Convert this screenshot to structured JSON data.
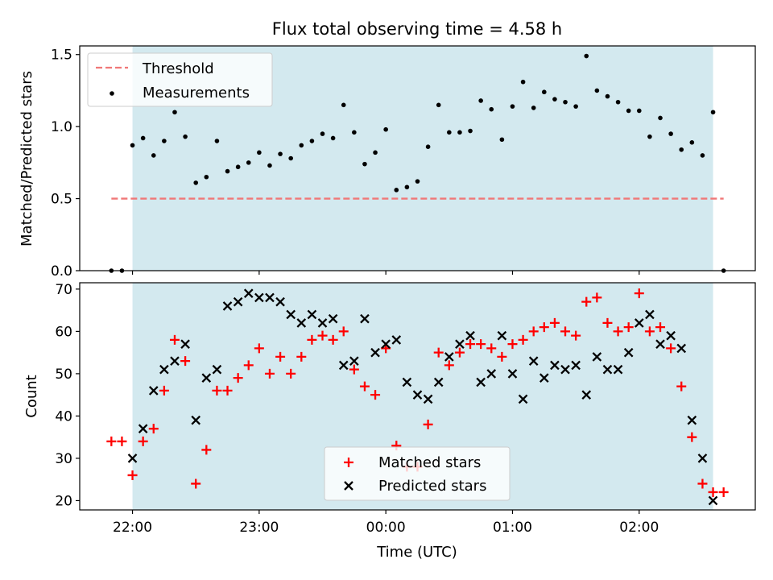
{
  "figure": {
    "title": "Flux total observing time = 4.58 h",
    "xlabel": "Time (UTC)",
    "xtick_labels": [
      "22:00",
      "23:00",
      "00:00",
      "01:00",
      "02:00"
    ],
    "colors": {
      "observing_band": "#d3e9ef",
      "threshold": "#f07878",
      "measurements": "#000000",
      "matched": "#ff0000",
      "predicted": "#000000"
    }
  },
  "chart_data": [
    {
      "type": "scatter",
      "ylabel": "Matched/Predicted stars",
      "ylim": [
        0,
        1.56
      ],
      "yticks": [
        0.0,
        0.5,
        1.0,
        1.5
      ],
      "ytick_labels": [
        "0.0",
        "0.5",
        "1.0",
        "1.5"
      ],
      "xlim_minutes": [
        -25,
        295
      ],
      "observing_window_minutes": [
        0,
        275
      ],
      "threshold": {
        "label": "Threshold",
        "value": 0.5,
        "x_range_minutes": [
          -10,
          280
        ]
      },
      "legend": {
        "position": "top-left",
        "entries": [
          "Threshold",
          "Measurements"
        ]
      },
      "series": [
        {
          "name": "Measurements",
          "marker": "dot",
          "x": [
            -10,
            -5,
            0,
            5,
            10,
            15,
            20,
            25,
            30,
            35,
            40,
            45,
            50,
            55,
            60,
            65,
            70,
            75,
            80,
            85,
            90,
            95,
            100,
            105,
            110,
            115,
            120,
            125,
            130,
            135,
            140,
            145,
            150,
            155,
            160,
            165,
            170,
            175,
            180,
            185,
            190,
            195,
            200,
            205,
            210,
            215,
            220,
            225,
            230,
            235,
            240,
            245,
            250,
            255,
            260,
            265,
            270,
            275,
            280
          ],
          "y": [
            0.0,
            0.0,
            0.87,
            0.92,
            0.8,
            0.9,
            1.1,
            0.93,
            0.61,
            0.65,
            0.9,
            0.69,
            0.72,
            0.75,
            0.82,
            0.73,
            0.81,
            0.78,
            0.87,
            0.9,
            0.95,
            0.92,
            1.15,
            0.96,
            0.74,
            0.82,
            0.98,
            0.56,
            0.58,
            0.62,
            0.86,
            1.15,
            0.96,
            0.96,
            0.97,
            1.18,
            1.12,
            0.91,
            1.14,
            1.31,
            1.13,
            1.24,
            1.19,
            1.17,
            1.14,
            1.49,
            1.25,
            1.21,
            1.17,
            1.11,
            1.11,
            0.93,
            1.06,
            0.95,
            0.84,
            0.89,
            0.8,
            1.1,
            0.0
          ]
        }
      ]
    },
    {
      "type": "scatter",
      "ylabel": "Count",
      "ylim": [
        17.8,
        71.5
      ],
      "yticks": [
        20,
        30,
        40,
        50,
        60,
        70
      ],
      "ytick_labels": [
        "20",
        "30",
        "40",
        "50",
        "60",
        "70"
      ],
      "xlim_minutes": [
        -25,
        295
      ],
      "observing_window_minutes": [
        0,
        275
      ],
      "legend": {
        "position": "lower center",
        "entries": [
          "Matched stars",
          "Predicted stars"
        ]
      },
      "series": [
        {
          "name": "Matched stars",
          "marker": "plus",
          "x": [
            -10,
            -5,
            0,
            5,
            10,
            15,
            20,
            25,
            30,
            35,
            40,
            45,
            50,
            55,
            60,
            65,
            70,
            75,
            80,
            85,
            90,
            95,
            100,
            105,
            110,
            115,
            120,
            125,
            130,
            135,
            140,
            145,
            150,
            155,
            160,
            165,
            170,
            175,
            180,
            185,
            190,
            195,
            200,
            205,
            210,
            215,
            220,
            225,
            230,
            235,
            240,
            245,
            250,
            255,
            260,
            265,
            270,
            275,
            280
          ],
          "y": [
            34,
            34,
            26,
            34,
            37,
            46,
            58,
            53,
            24,
            32,
            46,
            46,
            49,
            52,
            56,
            50,
            54,
            50,
            54,
            58,
            59,
            58,
            60,
            51,
            47,
            45,
            56,
            33,
            28,
            28,
            38,
            55,
            52,
            55,
            57,
            57,
            56,
            54,
            57,
            58,
            60,
            61,
            62,
            60,
            59,
            67,
            68,
            62,
            60,
            61,
            69,
            60,
            61,
            56,
            47,
            35,
            24,
            22,
            22
          ]
        },
        {
          "name": "Predicted stars",
          "marker": "x",
          "x": [
            0,
            5,
            10,
            15,
            20,
            25,
            30,
            35,
            40,
            45,
            50,
            55,
            60,
            65,
            70,
            75,
            80,
            85,
            90,
            95,
            100,
            105,
            110,
            115,
            120,
            125,
            130,
            135,
            140,
            145,
            150,
            155,
            160,
            165,
            170,
            175,
            180,
            185,
            190,
            195,
            200,
            205,
            210,
            215,
            220,
            225,
            230,
            235,
            240,
            245,
            250,
            255,
            260,
            265,
            270,
            275
          ],
          "y": [
            30,
            37,
            46,
            51,
            53,
            57,
            39,
            49,
            51,
            66,
            67,
            69,
            68,
            68,
            67,
            64,
            62,
            64,
            62,
            63,
            52,
            53,
            63,
            55,
            57,
            58,
            48,
            45,
            44,
            48,
            54,
            57,
            59,
            48,
            50,
            59,
            50,
            44,
            53,
            49,
            52,
            51,
            52,
            45,
            54,
            51,
            51,
            55,
            62,
            64,
            57,
            59,
            56,
            39,
            30,
            20
          ]
        }
      ]
    }
  ]
}
